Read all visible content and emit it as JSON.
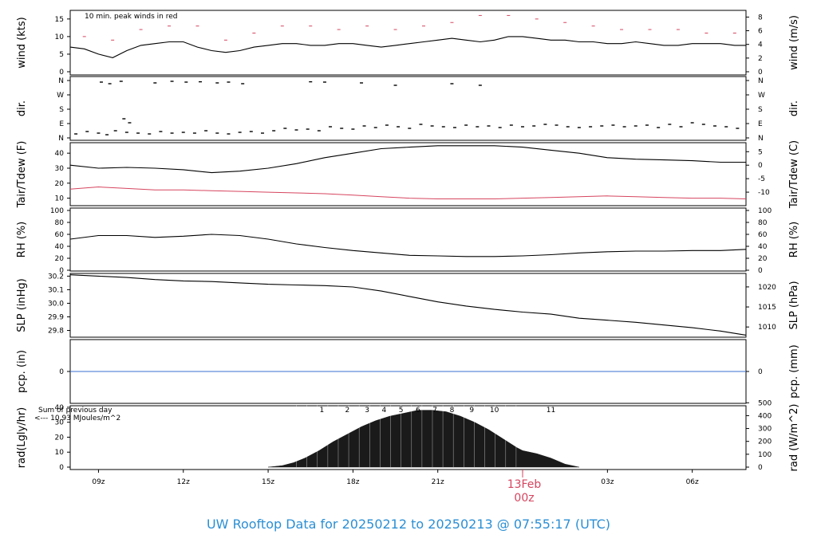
{
  "title": "UW Rooftop Data for 20250212  to  20250213 @ 07:55:17  (UTC)",
  "x_axis": {
    "ticks": [
      "09z",
      "12z",
      "15z",
      "18z",
      "21z",
      "00z",
      "03z",
      "06z"
    ],
    "tick_hours": [
      9,
      12,
      15,
      18,
      21,
      24,
      27,
      30
    ],
    "range_hours": [
      8.0,
      31.9
    ],
    "date_marker": "13Feb",
    "date_marker_hour": 24,
    "date_marker_time": "00z",
    "date_marker_color": "#d6455f"
  },
  "colors": {
    "line": "#000000",
    "peak": "#d6455f",
    "dewpoint": "#d6455f",
    "precip": "#3a6fd0",
    "rad_fill": "#1a1a1a",
    "annotation": "#9b30d9",
    "title": "#2b8fd4"
  },
  "chart_data": [
    {
      "type": "line",
      "panel": "wind",
      "ylabel_left": "wind (kts)",
      "ylabel_right": "wind (m/s)",
      "yticks_left": [
        0,
        5,
        10,
        15
      ],
      "yticks_right": [
        0,
        2,
        4,
        6,
        8
      ],
      "ylim": [
        0,
        17
      ],
      "annotation": "10 min. peak winds in red",
      "series": [
        {
          "name": "wind speed",
          "x": [
            8.0,
            8.5,
            9.0,
            9.5,
            10.0,
            10.5,
            11.0,
            11.5,
            12.0,
            12.5,
            13.0,
            13.5,
            14.0,
            14.5,
            15.0,
            15.5,
            16.0,
            16.5,
            17.0,
            17.5,
            18.0,
            18.5,
            19.0,
            19.5,
            20.0,
            20.5,
            21.0,
            21.5,
            22.0,
            22.5,
            23.0,
            23.5,
            24.0,
            24.5,
            25.0,
            25.5,
            26.0,
            26.5,
            27.0,
            27.5,
            28.0,
            28.5,
            29.0,
            29.5,
            30.0,
            30.5,
            31.0,
            31.5,
            31.9
          ],
          "values": [
            7,
            6.5,
            5,
            4,
            6,
            7.5,
            8,
            8.5,
            8.5,
            7,
            6,
            5.5,
            6,
            7,
            7.5,
            8,
            8,
            7.5,
            7.5,
            8,
            8,
            7.5,
            7,
            7.5,
            8,
            8.5,
            9,
            9.5,
            9,
            8.5,
            9,
            10,
            10,
            9.5,
            9,
            9,
            8.5,
            8.5,
            8,
            8,
            8.5,
            8,
            7.5,
            7.5,
            8,
            8,
            8,
            7.5,
            7.5
          ]
        },
        {
          "name": "10 min. peak",
          "x": [
            8.5,
            9.5,
            10.5,
            11.5,
            12.5,
            13.5,
            14.5,
            15.5,
            16.5,
            17.5,
            18.5,
            19.5,
            20.5,
            21.5,
            22.5,
            23.5,
            24.5,
            25.5,
            26.5,
            27.5,
            28.5,
            29.5,
            30.5,
            31.5
          ],
          "values": [
            10,
            9,
            12,
            13,
            13,
            9,
            11,
            13,
            13,
            12,
            13,
            12,
            13,
            14,
            16,
            16,
            15,
            14,
            13,
            12,
            12,
            12,
            11,
            11
          ]
        }
      ]
    },
    {
      "type": "scatter",
      "panel": "dir",
      "ylabel_left": "dir.",
      "ylabel_right": "dir.",
      "yticks": [
        "N",
        "E",
        "S",
        "W",
        "N"
      ],
      "yticks_deg": [
        0,
        90,
        180,
        270,
        360
      ],
      "ylim": [
        0,
        360
      ],
      "x": [
        8.2,
        8.6,
        9.0,
        9.3,
        9.6,
        10.0,
        10.4,
        10.8,
        11.2,
        11.6,
        12.0,
        12.4,
        12.8,
        13.2,
        13.6,
        14.0,
        14.4,
        14.8,
        15.2,
        15.6,
        16.0,
        16.4,
        16.8,
        17.2,
        17.6,
        18.0,
        18.4,
        18.8,
        19.2,
        19.6,
        20.0,
        20.4,
        20.8,
        21.2,
        21.6,
        22.0,
        22.4,
        22.8,
        23.2,
        23.6,
        24.0,
        24.4,
        24.8,
        25.2,
        25.6,
        26.0,
        26.4,
        26.8,
        27.2,
        27.6,
        28.0,
        28.4,
        28.8,
        29.2,
        29.6,
        30.0,
        30.4,
        30.8,
        31.2,
        31.6,
        9.1,
        9.4,
        9.8,
        11.0,
        11.6,
        12.1,
        12.6,
        13.2,
        13.6,
        14.1,
        16.5,
        17.0,
        18.3,
        19.5,
        21.5,
        22.5,
        9.9,
        10.1
      ],
      "values": [
        25,
        40,
        30,
        20,
        45,
        35,
        30,
        25,
        40,
        30,
        35,
        30,
        45,
        30,
        25,
        35,
        40,
        30,
        45,
        60,
        50,
        55,
        45,
        70,
        60,
        55,
        75,
        65,
        80,
        70,
        60,
        85,
        75,
        70,
        65,
        80,
        70,
        75,
        65,
        80,
        70,
        75,
        85,
        80,
        70,
        65,
        70,
        75,
        80,
        70,
        75,
        80,
        65,
        85,
        70,
        95,
        85,
        75,
        70,
        60,
        350,
        340,
        355,
        345,
        355,
        350,
        352,
        345,
        350,
        340,
        352,
        350,
        345,
        330,
        340,
        330,
        120,
        95
      ]
    },
    {
      "type": "line",
      "panel": "temperature",
      "ylabel_left": "Tair/Tdew (F)",
      "ylabel_right": "Tair/Tdew (C)",
      "yticks_left": [
        10,
        20,
        30,
        40
      ],
      "yticks_right": [
        -10,
        -5,
        0,
        5
      ],
      "ylim": [
        5,
        47
      ],
      "series": [
        {
          "name": "Tair",
          "x": [
            8.0,
            9,
            10,
            11,
            12,
            13,
            14,
            15,
            16,
            17,
            18,
            19,
            20,
            21,
            22,
            23,
            24,
            25,
            26,
            27,
            28,
            29,
            30,
            31,
            31.9
          ],
          "values": [
            32,
            30,
            30.5,
            30,
            29,
            27,
            28,
            30,
            33,
            37,
            40,
            43,
            44,
            45,
            45,
            45,
            44,
            42,
            40,
            37,
            36,
            35.5,
            35,
            34,
            34
          ]
        },
        {
          "name": "Tdew",
          "x": [
            8.0,
            9,
            10,
            11,
            12,
            13,
            14,
            15,
            16,
            17,
            18,
            19,
            20,
            21,
            22,
            23,
            24,
            25,
            26,
            27,
            28,
            29,
            30,
            31,
            31.9
          ],
          "values": [
            16,
            17.5,
            16.5,
            15.5,
            15.5,
            15,
            14.5,
            14,
            13.5,
            13,
            12,
            11,
            10,
            9.5,
            9.5,
            9.5,
            10,
            10.5,
            11,
            11.5,
            11,
            10.5,
            10,
            10,
            9.5
          ]
        }
      ]
    },
    {
      "type": "line",
      "panel": "rh",
      "ylabel_left": "RH (%)",
      "ylabel_right": "RH (%)",
      "yticks": [
        0,
        20,
        40,
        60,
        80,
        100
      ],
      "ylim": [
        0,
        100
      ],
      "series": [
        {
          "name": "RH",
          "x": [
            8.0,
            9,
            10,
            11,
            12,
            13,
            14,
            15,
            16,
            17,
            18,
            19,
            20,
            21,
            22,
            23,
            24,
            25,
            26,
            27,
            28,
            29,
            30,
            31,
            31.9
          ],
          "values": [
            52,
            58,
            58,
            55,
            57,
            60,
            58,
            52,
            44,
            38,
            33,
            29,
            25,
            24,
            23,
            23,
            24,
            26,
            29,
            31,
            32,
            32,
            33,
            33,
            35
          ]
        }
      ]
    },
    {
      "type": "line",
      "panel": "slp",
      "ylabel_left": "SLP (inHg)",
      "ylabel_right": "SLP (hPa)",
      "yticks_left": [
        29.8,
        29.9,
        30.0,
        30.1,
        30.2
      ],
      "yticks_right": [
        1010,
        1015,
        1020
      ],
      "ylim": [
        29.75,
        30.22
      ],
      "series": [
        {
          "name": "SLP",
          "x": [
            8.0,
            9,
            10,
            11,
            12,
            13,
            14,
            15,
            16,
            17,
            18,
            19,
            20,
            21,
            22,
            23,
            24,
            25,
            26,
            27,
            28,
            29,
            30,
            31,
            31.9
          ],
          "values": [
            30.21,
            30.2,
            30.19,
            30.175,
            30.165,
            30.16,
            30.15,
            30.14,
            30.135,
            30.13,
            30.12,
            30.09,
            30.05,
            30.01,
            29.98,
            29.955,
            29.935,
            29.92,
            29.89,
            29.875,
            29.86,
            29.84,
            29.82,
            29.795,
            29.765
          ]
        }
      ]
    },
    {
      "type": "line",
      "panel": "precip",
      "ylabel_left": "pcp. (in)",
      "ylabel_right": "pcp. (mm)",
      "yticks_left": [
        0
      ],
      "yticks_right": [
        0
      ],
      "ylim": [
        -1,
        1
      ],
      "series": [
        {
          "name": "precip",
          "x": [
            8.0,
            31.9
          ],
          "values": [
            0,
            0
          ]
        }
      ]
    },
    {
      "type": "area",
      "panel": "radiation",
      "ylabel_left": "rad(Lgly/hr)",
      "ylabel_right": "rad (W/m^2)",
      "yticks_left": [
        0,
        10,
        20,
        30,
        40
      ],
      "yticks_right": [
        0,
        100,
        200,
        300,
        400,
        500
      ],
      "ylim": [
        0,
        41
      ],
      "annotation_lines": [
        "Sum of previous day",
        "<--- 10.93 MJoules/m^2"
      ],
      "hour_labels": [
        "1",
        "2",
        "3",
        "4",
        "5",
        "6",
        "7",
        "8",
        "9",
        "10",
        "11"
      ],
      "hour_label_x": [
        16.9,
        17.8,
        18.5,
        19.1,
        19.7,
        20.3,
        20.9,
        21.5,
        22.2,
        23.0,
        25.0
      ],
      "series": [
        {
          "name": "radiation",
          "x": [
            15.0,
            15.5,
            15.9,
            16.3,
            16.8,
            17.3,
            17.8,
            18.3,
            18.8,
            19.3,
            19.8,
            20.3,
            20.8,
            21.3,
            21.8,
            22.3,
            22.8,
            23.3,
            23.8,
            24.0,
            24.5,
            25.0,
            25.5,
            26.0
          ],
          "values": [
            0,
            1,
            3,
            6,
            11,
            17,
            22,
            27,
            31,
            34,
            36,
            38,
            38,
            37,
            34,
            30,
            25,
            19,
            13,
            11,
            9,
            6,
            2,
            0
          ]
        }
      ]
    }
  ]
}
